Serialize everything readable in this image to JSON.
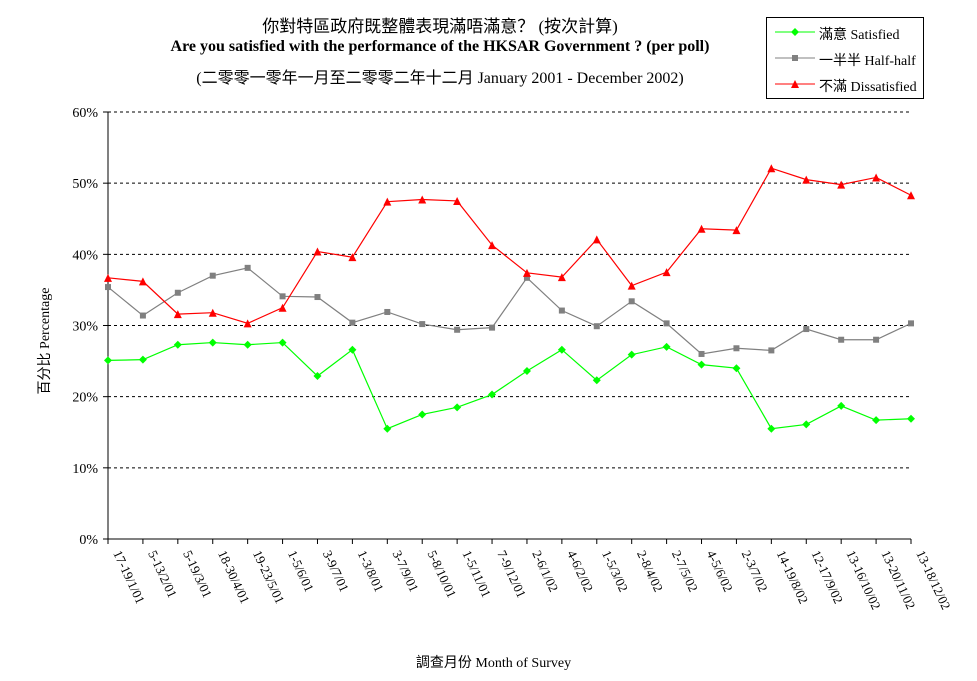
{
  "chart_data": {
    "type": "line",
    "title": "你對特區政府既整體表現滿唔滿意？ (按次計算)",
    "subtitle": "Are you satisfied with the performance of the HKSAR Government ? (per poll)",
    "subtitle2": "(二零零一零年一月至二零零二年十二月 January 2001 - December 2002)",
    "xlabel": "調查月份 Month of Survey",
    "ylabel": "百分比 Percentage",
    "ylim": [
      0,
      60
    ],
    "yticks": [
      "0%",
      "10%",
      "20%",
      "30%",
      "40%",
      "50%",
      "60%"
    ],
    "grid": "horizontal dashed",
    "legend_position": "top-right",
    "categories": [
      "17-19/1/01",
      "5-13/2/01",
      "5-19/3/01",
      "18-30/4/01",
      "19-23/5/01",
      "1-5/6/01",
      "3-9/7/01",
      "1-3/8/01",
      "3-7/9/01",
      "5-8/10/01",
      "1-5/11/01",
      "7-9/12/01",
      "2-6/1/02",
      "4-6/2/02",
      "1-5/3/02",
      "2-8/4/02",
      "2-7/5/02",
      "4-5/6/02",
      "2-3/7/02",
      "14-19/8/02",
      "12-17/9/02",
      "13-16/10/02",
      "13-20/11/02",
      "13-18/12/02"
    ],
    "series": [
      {
        "name": "滿意 Satisfied",
        "color": "#00ff00",
        "marker": "diamond",
        "values": [
          25.1,
          25.2,
          27.3,
          27.6,
          27.3,
          27.6,
          22.9,
          26.6,
          15.5,
          17.5,
          18.5,
          20.3,
          23.6,
          26.6,
          22.3,
          25.9,
          27.0,
          24.5,
          24.0,
          15.5,
          16.1,
          18.7,
          16.7,
          16.9
        ]
      },
      {
        "name": "一半半 Half-half",
        "color": "#808080",
        "marker": "square",
        "values": [
          35.4,
          31.4,
          34.6,
          37.0,
          38.1,
          34.1,
          34.0,
          30.4,
          31.9,
          30.2,
          29.4,
          29.7,
          36.7,
          32.1,
          29.9,
          33.4,
          30.3,
          26.0,
          26.8,
          26.5,
          29.5,
          28.0,
          28.0,
          30.3
        ]
      },
      {
        "name": "不滿 Dissatisfied",
        "color": "#ff0000",
        "marker": "triangle",
        "values": [
          36.7,
          36.2,
          31.6,
          31.8,
          30.3,
          32.5,
          40.4,
          39.6,
          47.4,
          47.7,
          47.5,
          41.3,
          37.4,
          36.8,
          42.1,
          35.6,
          37.5,
          43.6,
          43.4,
          52.1,
          50.5,
          49.8,
          50.8,
          48.3
        ]
      }
    ]
  }
}
